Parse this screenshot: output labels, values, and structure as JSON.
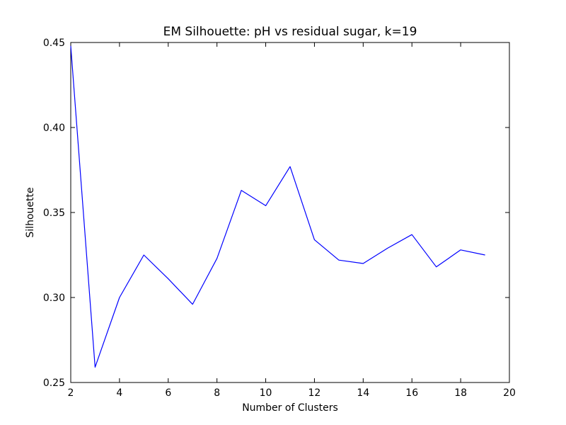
{
  "chart_data": {
    "type": "line",
    "title": "EM Silhouette: pH vs residual sugar, k=19",
    "xlabel": "Number of Clusters",
    "ylabel": "Silhouette",
    "xlim": [
      2,
      20
    ],
    "ylim": [
      0.25,
      0.45
    ],
    "xticks": [
      2,
      4,
      6,
      8,
      10,
      12,
      14,
      16,
      18,
      20
    ],
    "yticks": [
      0.25,
      0.3,
      0.35,
      0.4,
      0.45
    ],
    "xtick_labels": [
      "2",
      "4",
      "6",
      "8",
      "10",
      "12",
      "14",
      "16",
      "18",
      "20"
    ],
    "ytick_labels": [
      "0.25",
      "0.30",
      "0.35",
      "0.40",
      "0.45"
    ],
    "grid": false,
    "legend": "none",
    "series": [
      {
        "color": "#0000ff",
        "x": [
          2,
          3,
          4,
          5,
          6,
          7,
          8,
          9,
          10,
          11,
          12,
          13,
          14,
          15,
          16,
          17,
          18,
          19
        ],
        "y": [
          0.448,
          0.259,
          0.3,
          0.325,
          0.311,
          0.296,
          0.323,
          0.363,
          0.354,
          0.377,
          0.334,
          0.322,
          0.32,
          0.329,
          0.337,
          0.318,
          0.328,
          0.325
        ]
      }
    ]
  }
}
